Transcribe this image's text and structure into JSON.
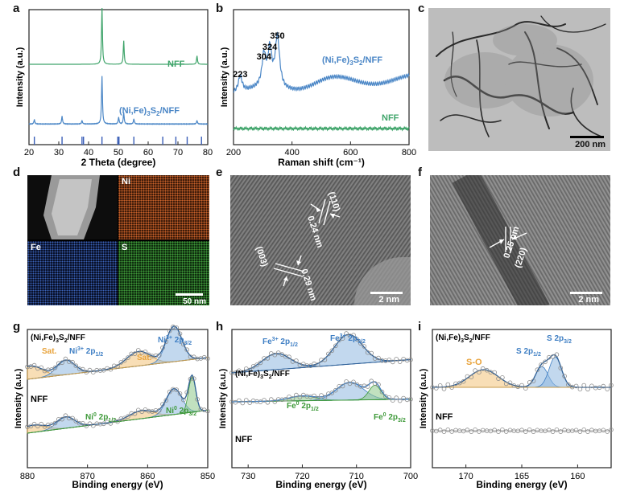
{
  "panel_labels": {
    "a": "a",
    "b": "b",
    "c": "c",
    "d": "d",
    "e": "e",
    "f": "f",
    "g": "g",
    "h": "h",
    "i": "i"
  },
  "colors": {
    "nff": "#3fa46a",
    "nifes": "#4a86c6",
    "ni_fill": "#f2c27a",
    "blue_fill": "#8fb8e0",
    "green_fill": "#8ec98a",
    "ni_map": "#c8612a",
    "fe_map": "#3b63b8",
    "s_map": "#3f9a3a"
  },
  "chart_data": [
    {
      "type": "line",
      "title": "",
      "xlabel": "2 Theta (degree)",
      "ylabel": "Intensity (a.u.)",
      "xlim": [
        20,
        80
      ],
      "x_ticks": [
        "20",
        "30",
        "40",
        "50",
        "60",
        "70",
        "80"
      ],
      "series": [
        {
          "name": "NFF",
          "peaks": [
            {
              "x": 44.5,
              "h": 1.0
            },
            {
              "x": 51.8,
              "h": 0.42
            },
            {
              "x": 76.4,
              "h": 0.15
            }
          ]
        },
        {
          "name": "(Ni,Fe)3S2/NFF",
          "peaks": [
            {
              "x": 21.8,
              "h": 0.08
            },
            {
              "x": 31.1,
              "h": 0.14
            },
            {
              "x": 37.8,
              "h": 0.06
            },
            {
              "x": 44.5,
              "h": 0.85
            },
            {
              "x": 50.1,
              "h": 0.12
            },
            {
              "x": 51.8,
              "h": 0.2
            },
            {
              "x": 55.2,
              "h": 0.09
            },
            {
              "x": 76.4,
              "h": 0.06
            }
          ]
        }
      ],
      "reference_sticks": [
        21.8,
        31.1,
        37.8,
        38.3,
        44.5,
        49.8,
        50.2,
        55.2,
        64.9,
        69.3,
        73.1,
        77.9
      ]
    },
    {
      "type": "line",
      "title": "",
      "xlabel": "Raman shift (cm⁻¹)",
      "ylabel": "Intensity (a.u.)",
      "xlim": [
        200,
        800
      ],
      "x_ticks": [
        "200",
        "400",
        "600",
        "800"
      ],
      "peak_labels": [
        "223",
        "304",
        "324",
        "350"
      ],
      "peak_positions": [
        223,
        304,
        324,
        350
      ],
      "series": [
        {
          "name": "(Ni,Fe)3S2/NFF"
        },
        {
          "name": "NFF"
        }
      ]
    },
    {
      "type": "line",
      "title": "",
      "xlabel": "Binding energy (eV)",
      "ylabel": "Intensity (a.u.)",
      "xlim": [
        880,
        850
      ],
      "x_ticks": [
        "880",
        "870",
        "860",
        "850"
      ],
      "upper_label": "(Ni,Fe)3S2/NFF",
      "lower_label": "NFF",
      "peaks_upper": [
        {
          "label": "Sat.",
          "x": 879.5
        },
        {
          "label": "Ni³⁺ 2p1/2",
          "x": 873.5
        },
        {
          "label": "Sat.",
          "x": 861.5
        },
        {
          "label": "Ni³⁺ 2p3/2",
          "x": 855.6
        }
      ],
      "peaks_lower": [
        {
          "label": "",
          "x": 879
        },
        {
          "label": "Ni⁰ 2p1/2",
          "x": 873.5
        },
        {
          "label": "",
          "x": 861
        },
        {
          "label": "Ni⁰ 2p3/2",
          "x": 855.5
        },
        {
          "label": "",
          "x": 852.5
        }
      ]
    },
    {
      "type": "line",
      "title": "",
      "xlabel": "Binding energy (eV)",
      "ylabel": "Intensity (a.u.)",
      "xlim": [
        733,
        700
      ],
      "x_ticks": [
        "730",
        "720",
        "710",
        "700"
      ],
      "upper_label": "(Ni,Fe)3S2/NFF",
      "lower_label": "NFF",
      "peaks_upper": [
        {
          "label": "Fe³⁺ 2p1/2",
          "x": 725
        },
        {
          "label": "Fe³⁺ 2p3/2",
          "x": 711.5
        }
      ],
      "peaks_lower": [
        {
          "label": "Fe⁰ 2p1/2",
          "x": 720
        },
        {
          "label": "",
          "x": 711
        },
        {
          "label": "Fe⁰ 2p3/2",
          "x": 706.5
        }
      ]
    },
    {
      "type": "line",
      "title": "",
      "xlabel": "Binding energy (eV)",
      "ylabel": "Intensity (a.u.)",
      "xlim": [
        173,
        157
      ],
      "x_ticks": [
        "170",
        "165",
        "160"
      ],
      "upper_label": "(Ni,Fe)3S2/NFF",
      "lower_label": "NFF",
      "peaks_upper": [
        {
          "label": "S-O",
          "x": 168.5
        },
        {
          "label": "S 2p1/2",
          "x": 163.2
        },
        {
          "label": "S 2p3/2",
          "x": 162.0
        }
      ]
    }
  ],
  "panel_c": {
    "scale_bar": "200 nm"
  },
  "panel_d": {
    "labels": [
      "Ni",
      "Fe",
      "S"
    ],
    "scale_bar": "50 nm"
  },
  "panel_e": {
    "plane1": "(110)",
    "d1": "0.24 nm",
    "plane2": "(003)",
    "d2": "0.29 nm",
    "scale_bar": "2 nm"
  },
  "panel_f": {
    "d": "0.25 nm",
    "plane": "(220)",
    "scale_bar": "2 nm"
  }
}
